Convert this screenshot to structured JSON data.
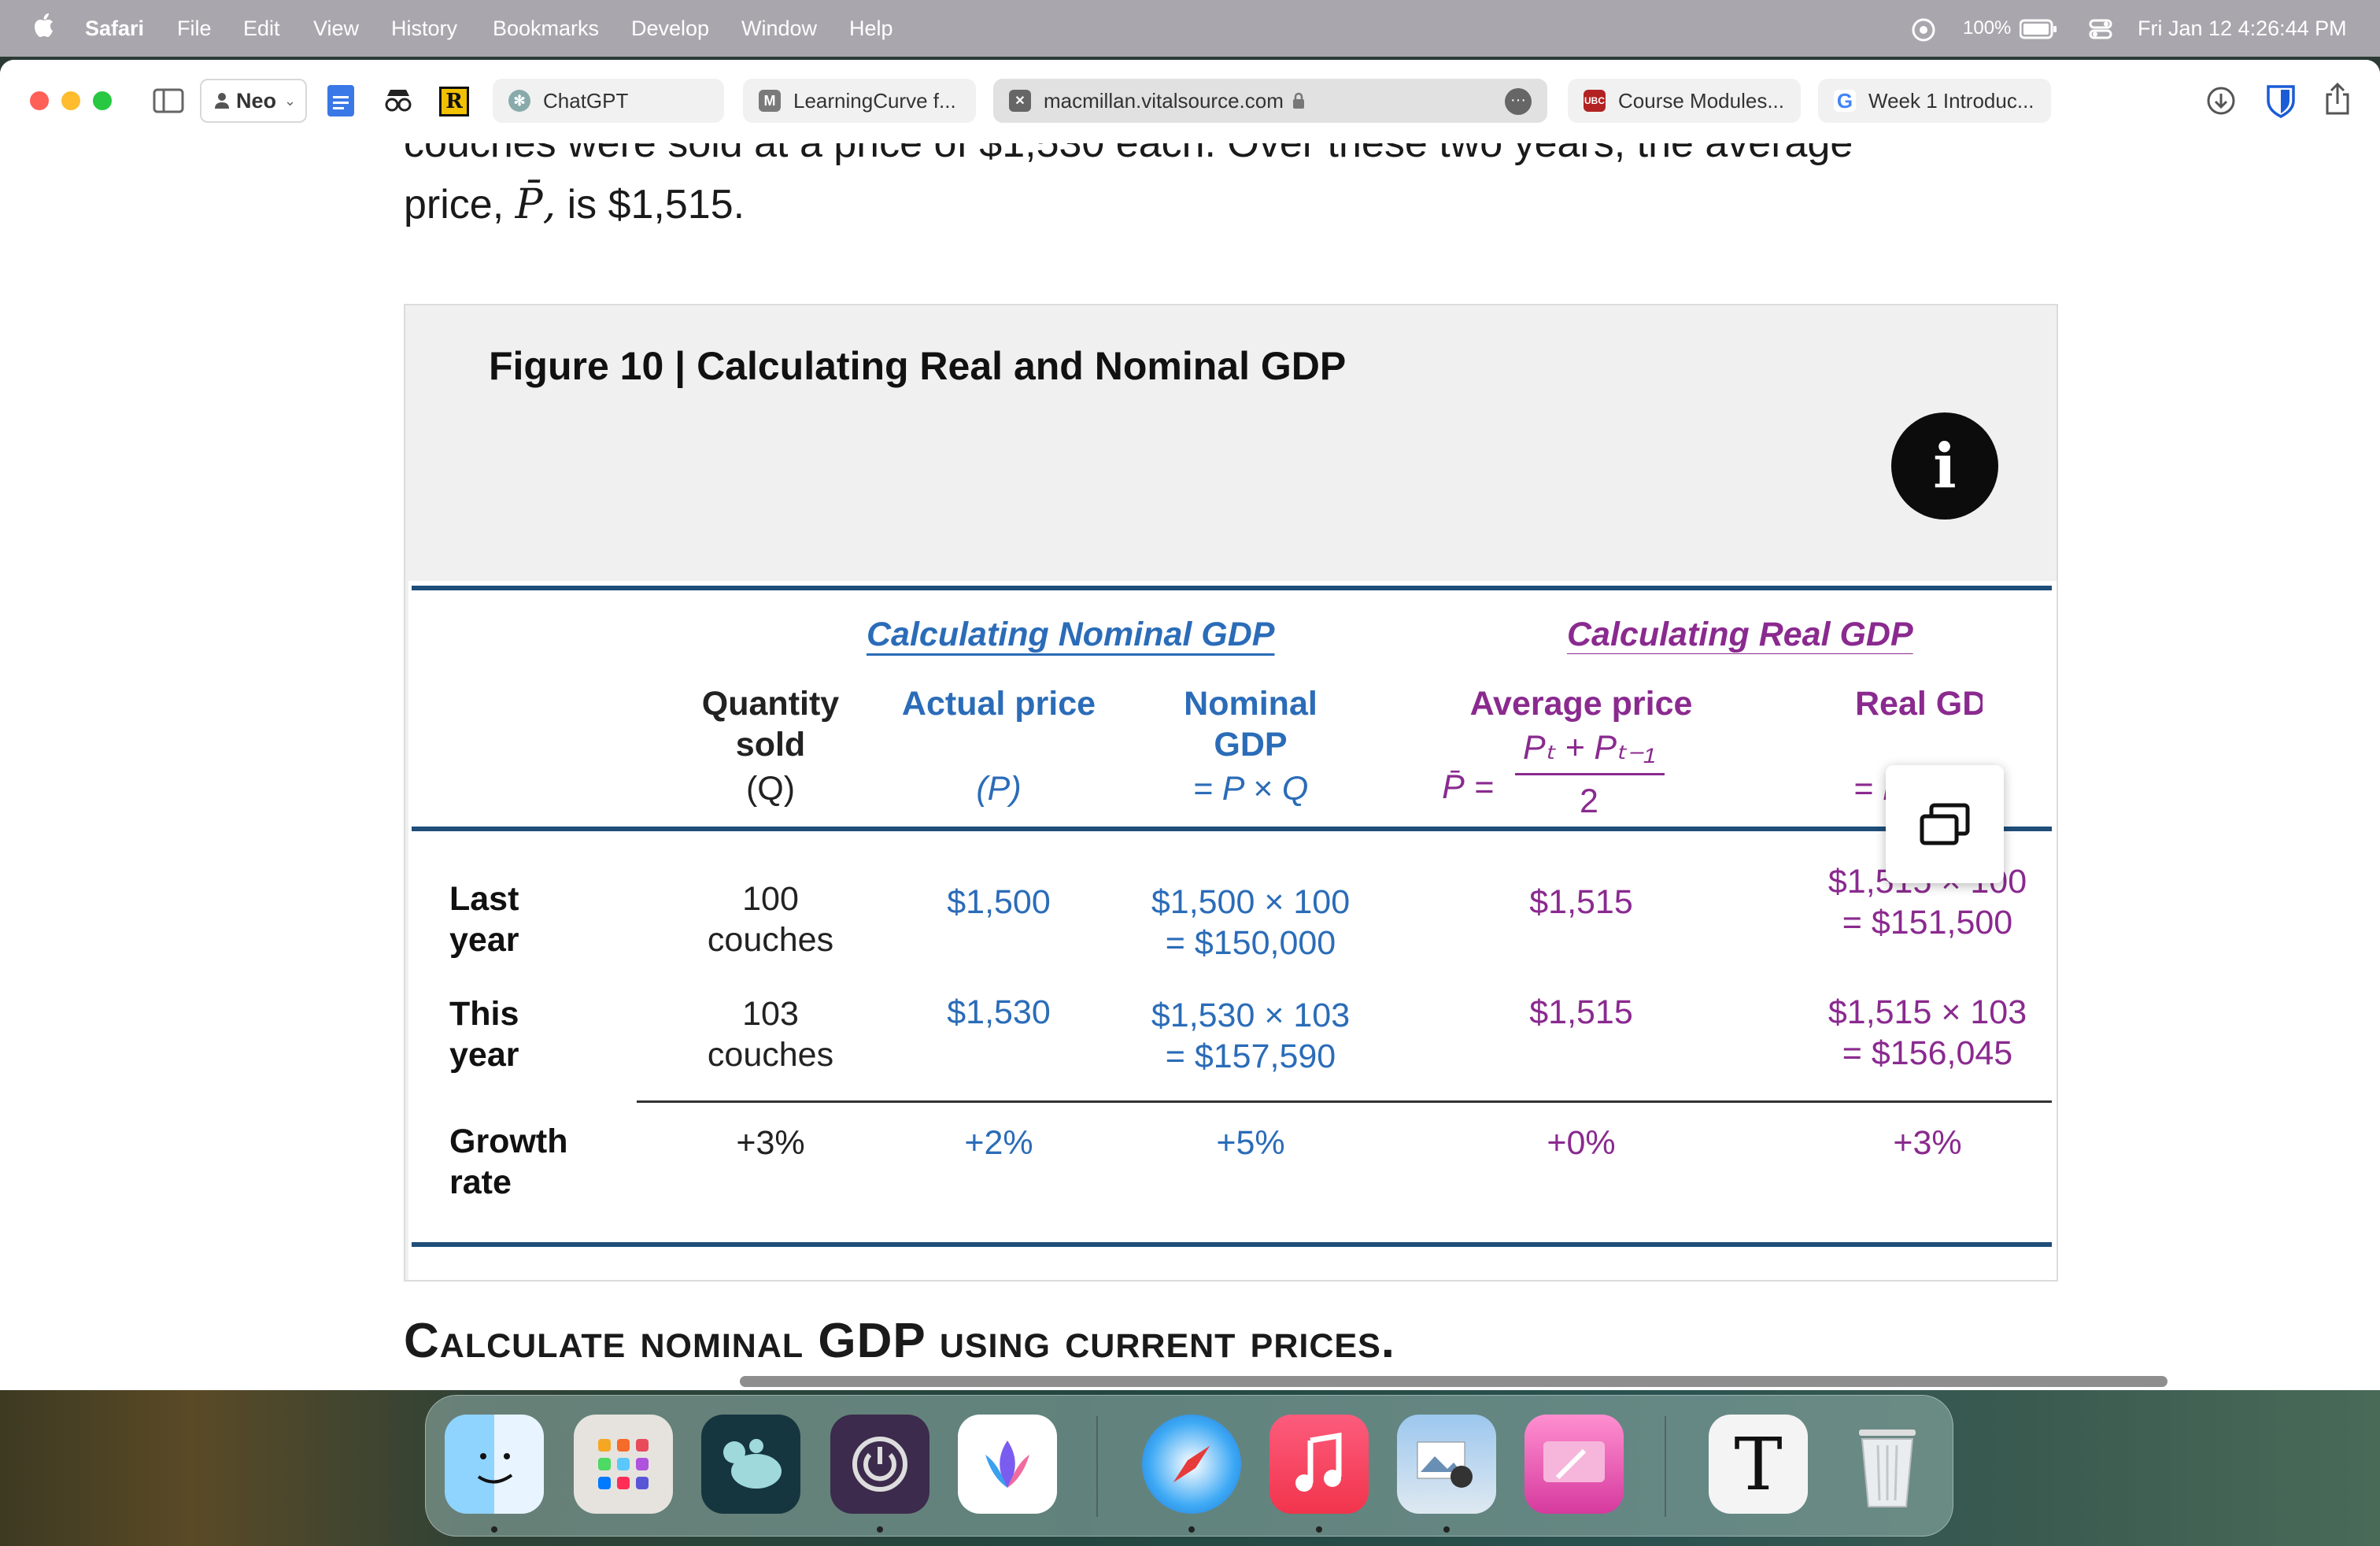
{
  "menubar": {
    "app_name": "Safari",
    "items": [
      "File",
      "Edit",
      "View",
      "History",
      "Bookmarks",
      "Develop",
      "Window",
      "Help"
    ],
    "battery": "100%",
    "datetime": "Fri Jan 12  4:26:44 PM"
  },
  "toolbar": {
    "profile": "Neo",
    "tabs": [
      {
        "label": "ChatGPT",
        "favicon": "chatgpt-logo"
      },
      {
        "label": "LearningCurve f...",
        "favicon": "M"
      },
      {
        "label": "macmillan.vitalsource.com",
        "favicon": "close-icon",
        "active": true
      },
      {
        "label": "Course Modules...",
        "favicon": "UBC"
      },
      {
        "label": "Week 1 Introduc...",
        "favicon": "G"
      }
    ]
  },
  "page": {
    "line1": "couches were sold at a price of $1,530 each. Over these two years, the average",
    "line2_prefix": "price, ",
    "line2_symbol": "P̄,",
    "line2_suffix": " is $1,515.",
    "figure_title": "Figure 10 | Calculating Real and Nominal GDP",
    "info_icon_glyph": "i",
    "section_heading": "Calculate nominal GDP using current prices."
  },
  "table": {
    "section_nominal": "Calculating Nominal GDP",
    "section_real": "Calculating Real GDP",
    "headers": {
      "quantity_l1": "Quantity",
      "quantity_l2": "sold",
      "quantity_l3": "(Q)",
      "actual_l1": "Actual price",
      "actual_l3": "(P)",
      "nominal_l1": "Nominal",
      "nominal_l2": "GDP",
      "nominal_l3": "= P × Q",
      "avg_l1": "Average price",
      "avg_lhs": "P̄ =",
      "avg_num": "Pₜ + Pₜ₋₁",
      "avg_den": "2",
      "real_l1": "Real GDP",
      "real_l3": "= P̄ × Q"
    },
    "rows": [
      {
        "label_l1": "Last",
        "label_l2": "year",
        "qty_l1": "100",
        "qty_l2": "couches",
        "price": "$1,500",
        "nominal_l1": "$1,500 × 100",
        "nominal_l2": "= $150,000",
        "avg": "$1,515",
        "real_l1": "$1,515 × 100",
        "real_l2": "= $151,500"
      },
      {
        "label_l1": "This",
        "label_l2": "year",
        "qty_l1": "103",
        "qty_l2": "couches",
        "price": "$1,530",
        "nominal_l1": "$1,530 × 103",
        "nominal_l2": "= $157,590",
        "avg": "$1,515",
        "real_l1": "$1,515 × 103",
        "real_l2": "= $156,045"
      },
      {
        "label_l1": "Growth",
        "label_l2": "rate",
        "qty_l1": "+3%",
        "price": "+2%",
        "nominal_l1": "+5%",
        "avg": "+0%",
        "real_l1": "+3%"
      }
    ]
  },
  "dock": {
    "apps": [
      "Finder",
      "Launchpad",
      "Mastodon",
      "Power",
      "Copilot",
      "Safari",
      "Music",
      "Preview",
      "CleanMyMac",
      "Typora",
      "Trash"
    ]
  },
  "colors": {
    "nominal": "#2b6cb8",
    "real": "#8a2a8f",
    "rule": "#1f4e79"
  }
}
